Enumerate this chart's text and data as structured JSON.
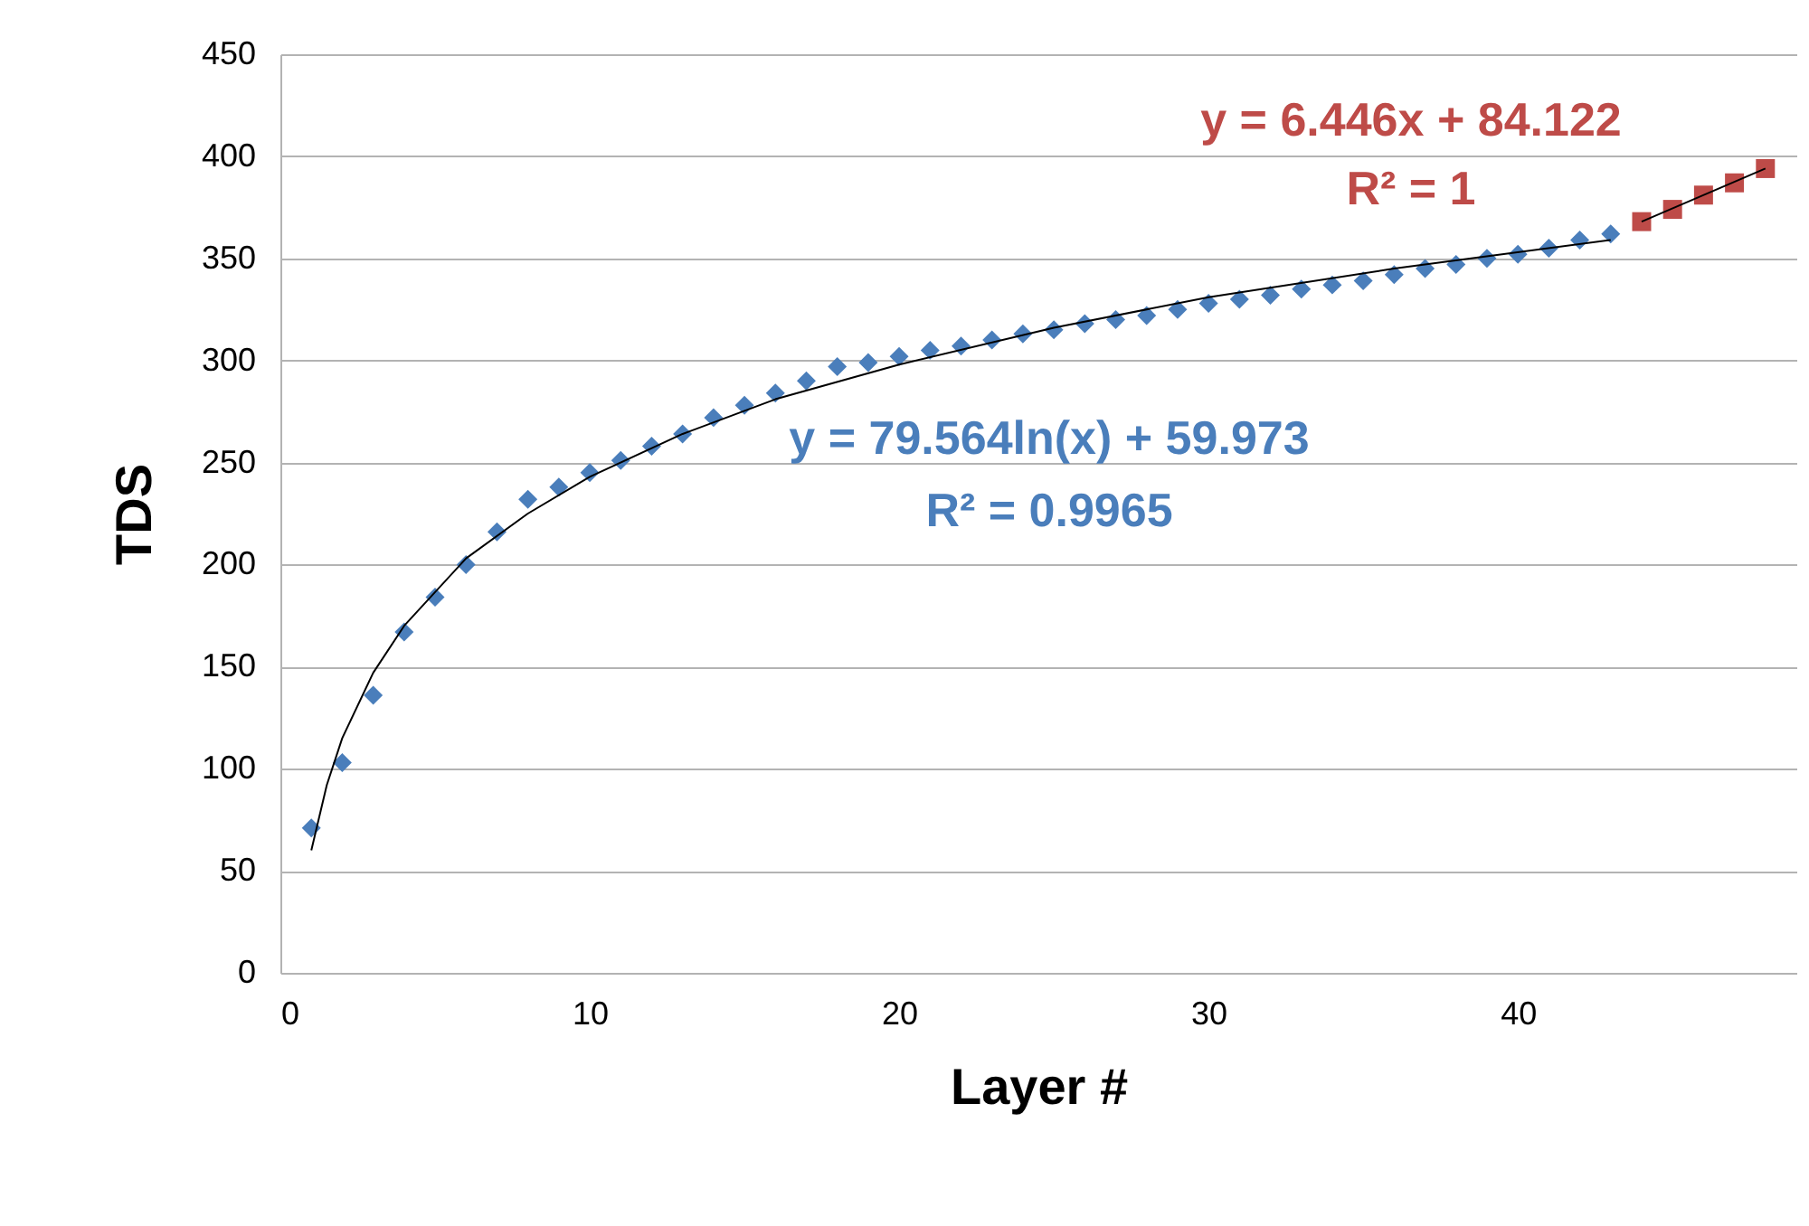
{
  "chart_data": {
    "type": "scatter",
    "xlabel": "Layer #",
    "ylabel": "TDS",
    "xlim": [
      0,
      49
    ],
    "ylim": [
      0,
      450
    ],
    "xticks": [
      0,
      10,
      20,
      30,
      40
    ],
    "yticks": [
      0,
      50,
      100,
      150,
      200,
      250,
      300,
      350,
      400,
      450
    ],
    "grid": "y",
    "series": [
      {
        "color": "#4a7ebb",
        "marker": "diamond",
        "x": [
          1,
          2,
          3,
          4,
          5,
          6,
          7,
          8,
          9,
          10,
          11,
          12,
          13,
          14,
          15,
          16,
          17,
          18,
          19,
          20,
          21,
          22,
          23,
          24,
          25,
          26,
          27,
          28,
          29,
          30,
          31,
          32,
          33,
          34,
          35,
          36,
          37,
          38,
          39,
          40,
          41,
          42,
          43
        ],
        "values": [
          71,
          103,
          136,
          167,
          184,
          200,
          216,
          232,
          238,
          245,
          251,
          258,
          264,
          272,
          278,
          284,
          290,
          297,
          299,
          302,
          305,
          307,
          310,
          313,
          315,
          318,
          320,
          322,
          325,
          328,
          330,
          332,
          335,
          337,
          339,
          342,
          345,
          347,
          350,
          352,
          355,
          359,
          362
        ]
      },
      {
        "color": "#be4b48",
        "marker": "square",
        "x": [
          44,
          45,
          46,
          47,
          48
        ],
        "values": [
          368,
          374,
          381,
          387,
          394
        ]
      },
      {
        "type": "line",
        "color": "#000000",
        "marker": "none",
        "line_style": "solid",
        "x": [
          1,
          1.5,
          2,
          3,
          4,
          6,
          8,
          10,
          13,
          16,
          20,
          25,
          30,
          36,
          43
        ],
        "values": [
          60,
          92,
          115,
          147,
          170,
          203,
          225,
          243,
          264,
          281,
          298,
          316,
          331,
          345,
          359
        ]
      },
      {
        "type": "line",
        "color": "#000000",
        "marker": "none",
        "line_style": "solid",
        "x": [
          44,
          48
        ],
        "values": [
          368,
          394
        ]
      }
    ],
    "annotations": [
      "y = 79.564ln(x) + 59.973",
      "R² = 0.9965",
      "y = 6.446x + 84.122",
      "R² = 1"
    ]
  }
}
